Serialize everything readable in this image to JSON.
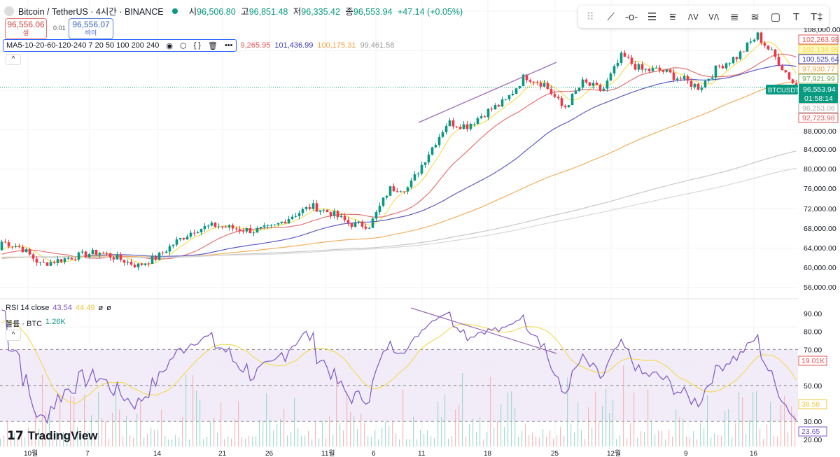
{
  "header": {
    "symbol": "Bitcoin / TetherUS · 4시간 · BINANCE",
    "open_label": "시",
    "open": "96,506.80",
    "high_label": "고",
    "high": "96,851.48",
    "low_label": "저",
    "low": "96,335.42",
    "close_label": "종",
    "close": "96,553.94",
    "change": "+47.14 (+0.05%)"
  },
  "trade": {
    "sell_price": "96,556.06",
    "sell_label": "셀",
    "spread": "0.01",
    "buy_price": "96,556.07",
    "buy_label": "바이"
  },
  "ma_legend": {
    "title": "MA5-10-20-60-120-240 7 20 50 100 200 240",
    "values": [
      "9,265.95",
      "101,436.99",
      "100,175.31",
      "99,461.58"
    ]
  },
  "toolbar": [
    "drag-handle",
    "trend-line",
    "horizontal-ray",
    "parallel-channel",
    "pitchfork",
    "elliott-wave",
    "abcd-pattern",
    "fib-retracement",
    "fib-extension",
    "rectangle",
    "text",
    "anchored-text"
  ],
  "rsi_legend": {
    "label": "RSI 14 close",
    "rsi": "43.54",
    "rsi_ma": "44.49",
    "extra1": "ø",
    "extra2": "ø"
  },
  "volume_legend": {
    "label": "볼륨 · BTC",
    "value": "1.26K"
  },
  "brand": "TradingView",
  "price_axis": {
    "ticks": [
      "108,000.00",
      "88,000.00",
      "84,000.00",
      "80,000.00",
      "76,000.00",
      "72,000.00",
      "68,000.00",
      "64,000.00",
      "60,000.00",
      "56,000.00"
    ],
    "labels": [
      {
        "text": "102,263.98",
        "color": "#e05555"
      },
      {
        "text": "102,134.96",
        "color": "#f2d94e"
      },
      {
        "text": "100,525.64",
        "color": "#3b3bb3"
      },
      {
        "text": "97,930.77",
        "color": "#f0a040"
      },
      {
        "text": "97,921.99",
        "color": "#6aa84f"
      },
      {
        "text": "96,253.06",
        "color": "#aaaaaa"
      },
      {
        "text": "92,723.98",
        "color": "#e05555"
      }
    ],
    "current_symbol": "BTCUSDT",
    "current_price": "96,553.94",
    "countdown": "01:58:14"
  },
  "rsi_axis": {
    "ticks": [
      "90.00",
      "80.00",
      "70.00",
      "50.00",
      "30.00",
      "20.00"
    ],
    "labels": [
      {
        "text": "19.01K",
        "color": "#e05555"
      },
      {
        "text": "38.58",
        "color": "#e8c840"
      },
      {
        "text": "23.65",
        "color": "#7e57c2"
      }
    ]
  },
  "time_axis": [
    "10월",
    "7",
    "14",
    "21",
    "26",
    "11월",
    "6",
    "11",
    "18",
    "25",
    "12월",
    "9",
    "16"
  ],
  "colors": {
    "up": "#089981",
    "down": "#f23645",
    "ma7": "#f2e05a",
    "ma20": "#e57373",
    "ma50": "#5c5cc4",
    "ma100": "#f0b060",
    "ma200": "#c7c7c7",
    "rsi": "#7e57c2",
    "rsi_ma": "#f2d94e"
  },
  "chart_data": {
    "type": "candlestick",
    "title": "Bitcoin / TetherUS · 4시간 · BINANCE",
    "ylim": [
      56000,
      108000
    ],
    "rsi_ylim": [
      20,
      90
    ],
    "approx_close_path": [
      65200,
      64000,
      60600,
      61500,
      62400,
      63100,
      61800,
      60300,
      62000,
      65200,
      67700,
      68500,
      67900,
      67400,
      68100,
      70500,
      72400,
      71000,
      68800,
      68500,
      75900,
      76200,
      83000,
      89400,
      88700,
      91500,
      93700,
      98900,
      97200,
      92200,
      97500,
      95800,
      102900,
      100000,
      100000,
      98300,
      96500,
      100800,
      102900,
      107100,
      102200,
      96550
    ],
    "ma_periods": [
      7,
      20,
      50,
      100,
      200,
      240
    ],
    "rsi_period": 14
  }
}
